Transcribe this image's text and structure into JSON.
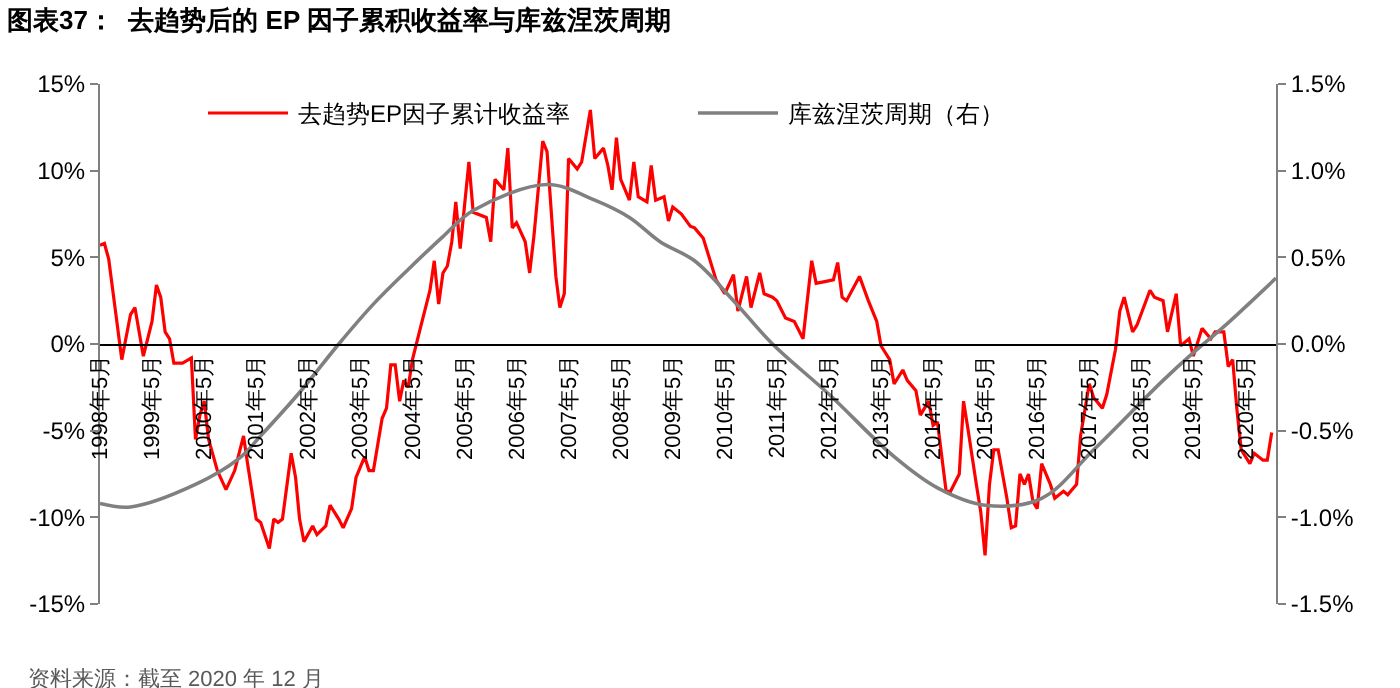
{
  "chart_data": {
    "type": "line",
    "title": "图表37：  去趋势后的 EP 因子累积收益率与库兹涅茨周期",
    "annotations": [
      "资料来源：截至 2020 年 12 月"
    ],
    "xlim": [
      "1998-05",
      "2020-12"
    ],
    "xticks": [
      {
        "value": "1998-05",
        "label": "1998年5月"
      },
      {
        "value": "1999-05",
        "label": "1999年5月"
      },
      {
        "value": "2000-05",
        "label": "2000年5月"
      },
      {
        "value": "2001-05",
        "label": "2001年5月"
      },
      {
        "value": "2002-05",
        "label": "2002年5月"
      },
      {
        "value": "2003-05",
        "label": "2003年5月"
      },
      {
        "value": "2004-05",
        "label": "2004年5月"
      },
      {
        "value": "2005-05",
        "label": "2005年5月"
      },
      {
        "value": "2006-05",
        "label": "2006年5月"
      },
      {
        "value": "2007-05",
        "label": "2007年5月"
      },
      {
        "value": "2008-05",
        "label": "2008年5月"
      },
      {
        "value": "2009-05",
        "label": "2009年5月"
      },
      {
        "value": "2010-05",
        "label": "2010年5月"
      },
      {
        "value": "2011-05",
        "label": "2011年5月"
      },
      {
        "value": "2012-05",
        "label": "2012年5月"
      },
      {
        "value": "2013-05",
        "label": "2013年5月"
      },
      {
        "value": "2014-05",
        "label": "2014年5月"
      },
      {
        "value": "2015-05",
        "label": "2015年5月"
      },
      {
        "value": "2016-05",
        "label": "2016年5月"
      },
      {
        "value": "2017-05",
        "label": "2017年5月"
      },
      {
        "value": "2018-05",
        "label": "2018年5月"
      },
      {
        "value": "2019-05",
        "label": "2019年5月"
      },
      {
        "value": "2020-05",
        "label": "2020年5月"
      }
    ],
    "ylim": [
      -15,
      15
    ],
    "yticks": [
      {
        "value": -15,
        "label": "-15%"
      },
      {
        "value": -10,
        "label": "-10%"
      },
      {
        "value": -5,
        "label": "-5%"
      },
      {
        "value": 0,
        "label": "0%"
      },
      {
        "value": 5,
        "label": "5%"
      },
      {
        "value": 10,
        "label": "10%"
      },
      {
        "value": 15,
        "label": "15%"
      }
    ],
    "y2lim": [
      -1.5,
      1.5
    ],
    "y2ticks": [
      {
        "value": -1.5,
        "label": "-1.5%"
      },
      {
        "value": -1.0,
        "label": "-1.0%"
      },
      {
        "value": -0.5,
        "label": "-0.5%"
      },
      {
        "value": 0,
        "label": "0.0%"
      },
      {
        "value": 0.5,
        "label": "0.5%"
      },
      {
        "value": 1.0,
        "label": "1.0%"
      },
      {
        "value": 1.5,
        "label": "1.5%"
      }
    ],
    "legend": "top",
    "marker": "none",
    "line_style": "solid",
    "series": [
      {
        "name": "去趋势EP因子累计收益率",
        "color": "#ff0000",
        "x": [
          "1998-05",
          "1998-06",
          "1998-07",
          "1998-10",
          "1998-12",
          "1999-01",
          "1999-03",
          "1999-05",
          "1999-06",
          "1999-07",
          "1999-08",
          "1999-09",
          "1999-10",
          "1999-12",
          "2000-02",
          "2000-03",
          "2000-04",
          "2000-05",
          "2000-06",
          "2000-08",
          "2000-10",
          "2000-12",
          "2001-02",
          "2001-03",
          "2001-05",
          "2001-06",
          "2001-08",
          "2001-09",
          "2001-10",
          "2001-11",
          "2002-01",
          "2002-02",
          "2002-03",
          "2002-04",
          "2002-06",
          "2002-07",
          "2002-09",
          "2002-10",
          "2002-12",
          "2003-01",
          "2003-03",
          "2003-04",
          "2003-06",
          "2003-07",
          "2003-08",
          "2003-10",
          "2003-11",
          "2003-12",
          "2004-01",
          "2004-02",
          "2004-03",
          "2004-04",
          "2004-05",
          "2004-07",
          "2004-09",
          "2004-10",
          "2004-11",
          "2004-12",
          "2005-01",
          "2005-02",
          "2005-03",
          "2005-04",
          "2005-06",
          "2005-07",
          "2005-10",
          "2005-11",
          "2005-12",
          "2006-02",
          "2006-03",
          "2006-04",
          "2006-05",
          "2006-07",
          "2006-08",
          "2006-09",
          "2006-11",
          "2006-12",
          "2007-02",
          "2007-03",
          "2007-04",
          "2007-05",
          "2007-07",
          "2007-08",
          "2007-10",
          "2007-11",
          "2008-01",
          "2008-02",
          "2008-03",
          "2008-04",
          "2008-05",
          "2008-07",
          "2008-08",
          "2008-09",
          "2008-11",
          "2008-12",
          "2009-01",
          "2009-03",
          "2009-04",
          "2009-05",
          "2009-07",
          "2009-09",
          "2009-10",
          "2009-12",
          "2010-03",
          "2010-05",
          "2010-07",
          "2010-08",
          "2010-10",
          "2010-11",
          "2011-01",
          "2011-02",
          "2011-04",
          "2011-05",
          "2011-07",
          "2011-09",
          "2011-11",
          "2012-01",
          "2012-02",
          "2012-04",
          "2012-06",
          "2012-07",
          "2012-08",
          "2012-09",
          "2012-12",
          "2013-02",
          "2013-04",
          "2013-05",
          "2013-07",
          "2013-08",
          "2013-10",
          "2013-11",
          "2014-01",
          "2014-02",
          "2014-04",
          "2014-05",
          "2014-06",
          "2014-08",
          "2014-09",
          "2014-11",
          "2014-12",
          "2015-01",
          "2015-03",
          "2015-04",
          "2015-05",
          "2015-06",
          "2015-07",
          "2015-08",
          "2015-10",
          "2015-11",
          "2015-12",
          "2016-01",
          "2016-02",
          "2016-03",
          "2016-04",
          "2016-05",
          "2016-06",
          "2016-08",
          "2016-09",
          "2016-11",
          "2016-12",
          "2017-02",
          "2017-03",
          "2017-05",
          "2017-06",
          "2017-08",
          "2017-09",
          "2017-11",
          "2017-12",
          "2018-01",
          "2018-03",
          "2018-04",
          "2018-07",
          "2018-08",
          "2018-10",
          "2018-11",
          "2019-01",
          "2019-02",
          "2019-04",
          "2019-05",
          "2019-07",
          "2019-09",
          "2019-10",
          "2019-12",
          "2020-01",
          "2020-02",
          "2020-03",
          "2020-04",
          "2020-06",
          "2020-07",
          "2020-09",
          "2020-10",
          "2020-11"
        ],
        "values": [
          5.7,
          5.8,
          4.9,
          -0.9,
          1.7,
          2.1,
          -0.7,
          1.3,
          3.4,
          2.7,
          0.7,
          0.3,
          -1.1,
          -1.1,
          -0.8,
          -5.5,
          -4.1,
          -3.3,
          -5.5,
          -7.3,
          -8.4,
          -7.3,
          -5.3,
          -6.9,
          -10.1,
          -10.3,
          -11.8,
          -10.1,
          -10.3,
          -10.1,
          -6.3,
          -7.7,
          -10.1,
          -11.4,
          -10.5,
          -11.0,
          -10.5,
          -9.3,
          -10.1,
          -10.6,
          -9.5,
          -7.7,
          -6.5,
          -7.3,
          -7.3,
          -4.3,
          -3.7,
          -1.2,
          -1.2,
          -3.3,
          -2.1,
          -2.5,
          -0.9,
          1.1,
          3.1,
          4.8,
          2.3,
          4.1,
          4.5,
          5.9,
          8.2,
          5.5,
          10.5,
          7.6,
          7.3,
          5.9,
          9.5,
          8.9,
          11.3,
          6.7,
          7.0,
          5.9,
          4.1,
          6.3,
          11.7,
          11.1,
          3.9,
          2.1,
          2.9,
          10.7,
          10.1,
          10.5,
          13.5,
          10.7,
          11.3,
          10.3,
          8.9,
          11.9,
          9.5,
          8.3,
          10.5,
          8.5,
          8.2,
          10.3,
          8.3,
          8.5,
          7.1,
          7.9,
          7.5,
          6.8,
          6.7,
          6.1,
          3.7,
          2.9,
          4.0,
          1.9,
          3.9,
          2.1,
          4.1,
          2.9,
          2.7,
          2.5,
          1.5,
          1.3,
          0.3,
          4.8,
          3.5,
          3.6,
          3.7,
          4.7,
          2.7,
          2.5,
          3.9,
          2.5,
          1.3,
          -0.1,
          -0.9,
          -2.3,
          -1.5,
          -2.1,
          -2.7,
          -4.1,
          -3.3,
          -4.7,
          -4.5,
          -8.5,
          -8.5,
          -7.5,
          -3.3,
          -4.9,
          -8.1,
          -9.7,
          -12.2,
          -8.1,
          -6.1,
          -6.1,
          -8.9,
          -10.6,
          -10.5,
          -7.5,
          -8.1,
          -7.5,
          -9.1,
          -9.5,
          -6.9,
          -8.1,
          -8.9,
          -8.5,
          -8.7,
          -8.1,
          -5.3,
          -2.3,
          -3.1,
          -3.7,
          -2.9,
          -0.3,
          1.9,
          2.7,
          0.7,
          1.1,
          3.1,
          2.7,
          2.5,
          0.7,
          2.9,
          -0.1,
          0.3,
          -0.7,
          0.9,
          0.3,
          0.7,
          0.7,
          -1.3,
          -0.9,
          -3.7,
          -6.1,
          -6.9,
          -6.3,
          -6.7,
          -6.7,
          -5.1
        ]
      },
      {
        "name": "库兹涅茨周期（右）",
        "color": "#808080",
        "axis": "y2",
        "x": [
          "1998-05",
          "1998-12",
          "2000-03",
          "2001-01",
          "2001-06",
          "2002-03",
          "2002-12",
          "2003-08",
          "2004-04",
          "2004-12",
          "2005-07",
          "2006-12",
          "2007-11",
          "2008-07",
          "2009-02",
          "2009-10",
          "2010-07",
          "2011-04",
          "2012-05",
          "2013-08",
          "2014-06",
          "2015-05",
          "2016-06",
          "2017-06",
          "2018-10",
          "2019-05",
          "2019-12",
          "2020-12"
        ],
        "values": [
          -0.92,
          -0.94,
          -0.81,
          -0.66,
          -0.53,
          -0.28,
          0,
          0.23,
          0.43,
          0.62,
          0.77,
          0.92,
          0.83,
          0.73,
          0.59,
          0.48,
          0.25,
          0,
          -0.29,
          -0.65,
          -0.83,
          -0.93,
          -0.89,
          -0.61,
          -0.21,
          -0.05,
          0.1,
          0.38
        ]
      }
    ]
  }
}
